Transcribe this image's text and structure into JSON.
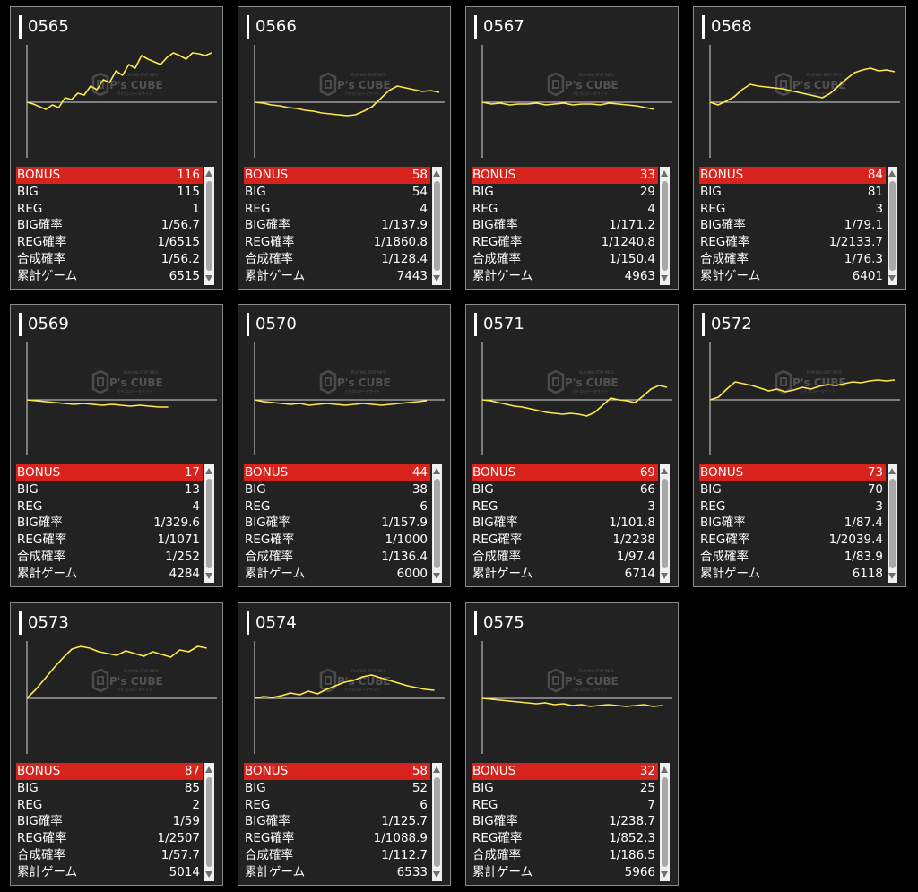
{
  "machines": [
    {
      "id": "0565",
      "bonus": "116",
      "big": "115",
      "reg": "1",
      "big_rate": "1/56.7",
      "reg_rate": "1/6515",
      "total_rate": "1/56.2",
      "games": "6515",
      "graph": [
        0,
        -2,
        -5,
        -8,
        -3,
        -6,
        5,
        3,
        10,
        8,
        18,
        14,
        25,
        22,
        35,
        30,
        42,
        38,
        52,
        48,
        45,
        42,
        50,
        55,
        52,
        48,
        55,
        54,
        52,
        55
      ]
    },
    {
      "id": "0566",
      "bonus": "58",
      "big": "54",
      "reg": "4",
      "big_rate": "1/137.9",
      "reg_rate": "1/1860.8",
      "total_rate": "1/128.4",
      "games": "7443",
      "graph": [
        0,
        -1,
        -3,
        -4,
        -6,
        -7,
        -9,
        -10,
        -12,
        -13,
        -14,
        -15,
        -14,
        -10,
        -5,
        4,
        13,
        18,
        16,
        14,
        12,
        13,
        11
      ]
    },
    {
      "id": "0567",
      "bonus": "33",
      "big": "29",
      "reg": "4",
      "big_rate": "1/171.2",
      "reg_rate": "1/1240.8",
      "total_rate": "1/150.4",
      "games": "4963",
      "graph": [
        0,
        -2,
        -1,
        -3,
        -2,
        -2,
        -1,
        -3,
        -2,
        -1,
        -3,
        -2,
        -2,
        -3,
        -1,
        -2,
        -3,
        -4,
        -6,
        -8
      ]
    },
    {
      "id": "0568",
      "bonus": "84",
      "big": "81",
      "reg": "3",
      "big_rate": "1/79.1",
      "reg_rate": "1/2133.7",
      "total_rate": "1/76.3",
      "games": "6401",
      "graph": [
        0,
        -3,
        1,
        6,
        14,
        20,
        18,
        17,
        16,
        15,
        13,
        11,
        9,
        7,
        5,
        10,
        18,
        26,
        33,
        36,
        38,
        35,
        36,
        34
      ]
    },
    {
      "id": "0569",
      "bonus": "17",
      "big": "13",
      "reg": "4",
      "big_rate": "1/329.6",
      "reg_rate": "1/1071",
      "total_rate": "1/252",
      "games": "4284",
      "graph": [
        0,
        -1,
        -2,
        -3,
        -4,
        -5,
        -4,
        -5,
        -6,
        -5,
        -6,
        -7,
        -6,
        -7,
        -8,
        -8
      ]
    },
    {
      "id": "0570",
      "bonus": "44",
      "big": "38",
      "reg": "6",
      "big_rate": "1/157.9",
      "reg_rate": "1/1000",
      "total_rate": "1/136.4",
      "games": "6000",
      "graph": [
        0,
        -2,
        -3,
        -4,
        -5,
        -4,
        -6,
        -5,
        -4,
        -5,
        -6,
        -5,
        -4,
        -5,
        -6,
        -5,
        -4,
        -3,
        -2,
        -1
      ]
    },
    {
      "id": "0571",
      "bonus": "69",
      "big": "66",
      "reg": "3",
      "big_rate": "1/101.8",
      "reg_rate": "1/2238",
      "total_rate": "1/97.4",
      "games": "6714",
      "graph": [
        0,
        -1,
        -3,
        -5,
        -7,
        -8,
        -10,
        -12,
        -14,
        -15,
        -16,
        -15,
        -16,
        -18,
        -14,
        -6,
        2,
        0,
        -1,
        -3,
        4,
        12,
        16,
        14
      ]
    },
    {
      "id": "0572",
      "bonus": "73",
      "big": "70",
      "reg": "3",
      "big_rate": "1/87.4",
      "reg_rate": "1/2039.4",
      "total_rate": "1/83.9",
      "games": "6118",
      "graph": [
        0,
        3,
        12,
        20,
        18,
        16,
        13,
        10,
        12,
        9,
        11,
        14,
        12,
        15,
        17,
        16,
        18,
        20,
        19,
        21,
        22,
        21,
        22
      ]
    },
    {
      "id": "0573",
      "bonus": "87",
      "big": "85",
      "reg": "2",
      "big_rate": "1/59",
      "reg_rate": "1/2507",
      "total_rate": "1/57.7",
      "games": "5014",
      "graph": [
        0,
        10,
        22,
        34,
        45,
        55,
        58,
        56,
        52,
        50,
        48,
        53,
        50,
        47,
        52,
        49,
        46,
        54,
        52,
        58,
        56
      ]
    },
    {
      "id": "0574",
      "bonus": "58",
      "big": "52",
      "reg": "6",
      "big_rate": "1/125.7",
      "reg_rate": "1/1088.9",
      "total_rate": "1/112.7",
      "games": "6533",
      "graph": [
        0,
        2,
        1,
        3,
        6,
        4,
        8,
        5,
        10,
        14,
        18,
        20,
        24,
        26,
        23,
        20,
        17,
        14,
        12,
        10,
        9
      ]
    },
    {
      "id": "0575",
      "bonus": "32",
      "big": "25",
      "reg": "7",
      "big_rate": "1/238.7",
      "reg_rate": "1/852.3",
      "total_rate": "1/186.5",
      "games": "5966",
      "graph": [
        0,
        -1,
        -2,
        -3,
        -4,
        -5,
        -6,
        -5,
        -7,
        -6,
        -8,
        -7,
        -9,
        -8,
        -7,
        -8,
        -9,
        -8,
        -7,
        -9,
        -8
      ]
    }
  ],
  "labels": {
    "bonus": "BONUS",
    "big": "BIG",
    "reg": "REG",
    "big_rate": "BIG確率",
    "reg_rate": "REG確率",
    "total_rate": "合成確率",
    "games": "累計ゲーム"
  },
  "watermark": {
    "logo": "P's CUBE",
    "top_line": "PLAYING STAT INFO",
    "bottom_line": "パチスロデータサイト"
  },
  "colors": {
    "bonus_bar": "#d8231c",
    "graph_line": "#ffe94a",
    "card_bg": "#222222",
    "page_bg": "#000000"
  }
}
